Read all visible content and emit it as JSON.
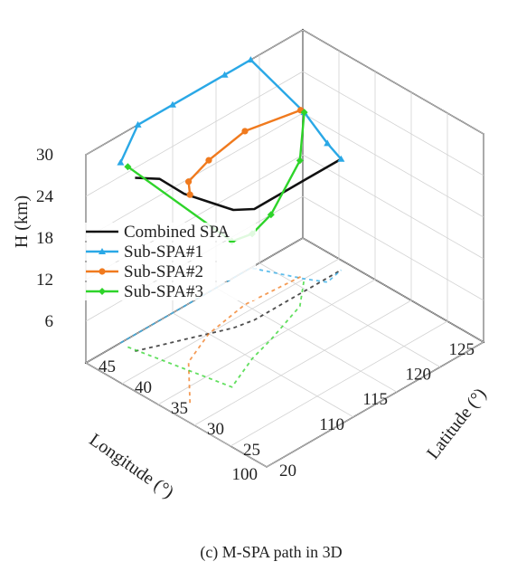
{
  "chart_data": {
    "type": "line",
    "projection": "3d",
    "caption": "(c) M-SPA path in 3D",
    "zlabel": "H (km)",
    "xlabel": "Longitude (°)",
    "ylabel": "Latitude (°)",
    "xlim": [
      100,
      125
    ],
    "ylim": [
      20,
      45
    ],
    "zlim": [
      0,
      30
    ],
    "z_ticks": [
      "6",
      "12",
      "18",
      "24",
      "30"
    ],
    "x_ticks": [
      "100",
      "110",
      "115",
      "120",
      "125"
    ],
    "y_ticks": [
      "20",
      "25",
      "30",
      "35",
      "40",
      "45"
    ],
    "grid": true,
    "legend_position": "center-left",
    "ground_projection": "dashed",
    "series": [
      {
        "name": "Combined SPA",
        "color": "#111111",
        "marker": "none",
        "points": [
          [
            104,
            43,
            25
          ],
          [
            106,
            42,
            24
          ],
          [
            108,
            41,
            21
          ],
          [
            110,
            40,
            19
          ],
          [
            112,
            39,
            17
          ],
          [
            114,
            38.5,
            16
          ],
          [
            116,
            38.5,
            16
          ],
          [
            118,
            38.5,
            16
          ],
          [
            120,
            38.5,
            16
          ],
          [
            122,
            38.5,
            16
          ],
          [
            124,
            38.5,
            16
          ]
        ]
      },
      {
        "name": "Sub-SPA#1",
        "color": "#2aa8e6",
        "marker": "triangle",
        "points": [
          [
            104,
            45,
            26
          ],
          [
            106,
            45,
            30
          ],
          [
            110,
            45,
            30
          ],
          [
            116,
            45,
            30
          ],
          [
            119,
            45,
            30
          ],
          [
            121,
            40,
            24
          ],
          [
            122,
            38,
            20
          ],
          [
            124,
            38.5,
            16
          ]
        ]
      },
      {
        "name": "Sub-SPA#2",
        "color": "#f07a1e",
        "marker": "circle",
        "points": [
          [
            102,
            33,
            30
          ],
          [
            106,
            38,
            26
          ],
          [
            110,
            40,
            25
          ],
          [
            115,
            41,
            25
          ],
          [
            121,
            40.5,
            24
          ]
        ]
      },
      {
        "name": "Sub-SPA#3",
        "color": "#2ed42a",
        "marker": "diamond",
        "points": [
          [
            104,
            44,
            26
          ],
          [
            106,
            32,
            21
          ],
          [
            110,
            34,
            18
          ],
          [
            113,
            35,
            18
          ],
          [
            118,
            37,
            21
          ],
          [
            121,
            40,
            24
          ]
        ]
      }
    ]
  }
}
